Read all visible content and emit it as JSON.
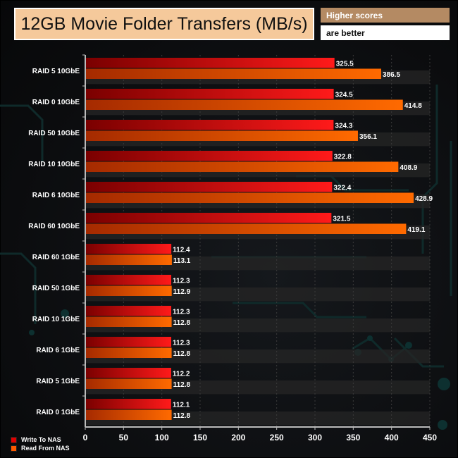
{
  "chart_data": {
    "type": "bar",
    "orientation": "horizontal",
    "title": "12GB Movie Folder Transfers (MB/s)",
    "note_top": "Higher scores",
    "note_bottom": "are better",
    "categories": [
      "RAID 5 10GbE",
      "RAID 0 10GbE",
      "RAID 50 10GbE",
      "RAID 10 10GbE",
      "RAID 6 10GbE",
      "RAID 60 10GbE",
      "RAID 60 1GbE",
      "RAID 50 1GbE",
      "RAID 10 1GbE",
      "RAID 6 1GbE",
      "RAID 5 1GbE",
      "RAID 0 1GbE"
    ],
    "series": [
      {
        "name": "Write To NAS",
        "color": "#e00000",
        "values": [
          325.5,
          324.5,
          324.3,
          322.8,
          322.4,
          321.5,
          112.4,
          112.3,
          112.3,
          112.3,
          112.2,
          112.1
        ]
      },
      {
        "name": "Read From NAS",
        "color": "#ff5a00",
        "values": [
          386.5,
          414.8,
          356.1,
          408.9,
          428.9,
          419.1,
          113.1,
          112.9,
          112.8,
          112.8,
          112.8,
          112.8
        ]
      }
    ],
    "xlim": [
      0,
      450
    ],
    "xticks": [
      "0",
      "50",
      "100",
      "150",
      "200",
      "250",
      "300",
      "350",
      "400",
      "450"
    ],
    "legend": "bottom-left"
  }
}
